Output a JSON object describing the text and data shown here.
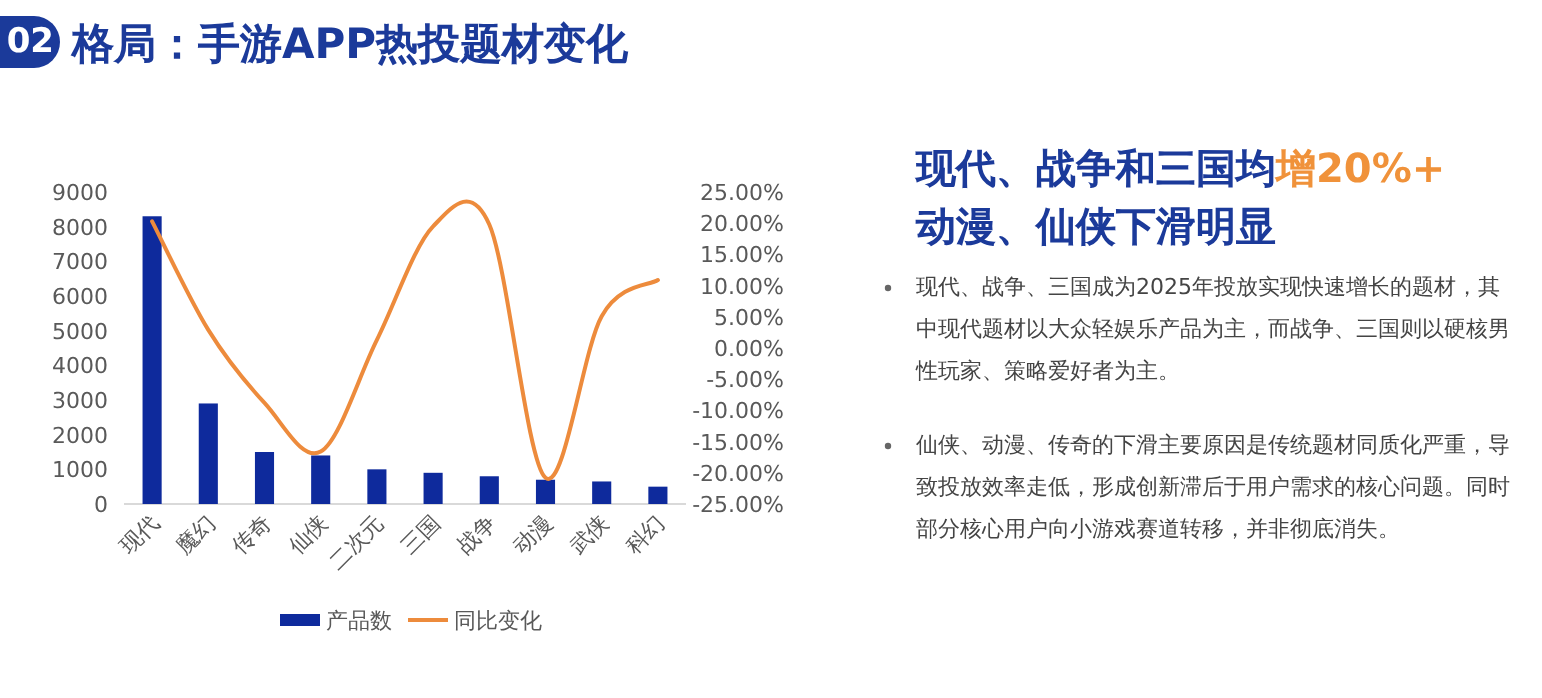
{
  "chart_data": {
    "type": "bar",
    "title": "格局：手游APP热投题材变化",
    "categories": [
      "现代",
      "魔幻",
      "传奇",
      "仙侠",
      "二次元",
      "三国",
      "战争",
      "动漫",
      "武侠",
      "科幻"
    ],
    "series": [
      {
        "name": "产品数",
        "color": "#0e2a9c",
        "values": [
          8300,
          2900,
          1500,
          1400,
          1000,
          900,
          800,
          700,
          650,
          500
        ]
      },
      {
        "name": "同比变化",
        "type": "line",
        "axis": "y2",
        "color": "#ed8b3c",
        "values": [
          20.3,
          2.9,
          -8.8,
          -16.6,
          1.3,
          19.5,
          19.8,
          -20.8,
          5.1,
          10.9
        ]
      }
    ],
    "ylim": [
      0,
      9000
    ],
    "yticks": [
      0,
      1000,
      2000,
      3000,
      4000,
      5000,
      6000,
      7000,
      8000,
      9000
    ],
    "y2lim": [
      -25,
      25
    ],
    "y2ticks": [
      {
        "value": -25,
        "label": "-25.00%"
      },
      {
        "value": -20,
        "label": "-20.00%"
      },
      {
        "value": -15,
        "label": "-15.00%"
      },
      {
        "value": -10,
        "label": "-10.00%"
      },
      {
        "value": -5,
        "label": "-5.00%"
      },
      {
        "value": 0,
        "label": "0.00%"
      },
      {
        "value": 5,
        "label": "5.00%"
      },
      {
        "value": 10,
        "label": "10.00%"
      },
      {
        "value": 15,
        "label": "15.00%"
      },
      {
        "value": 20,
        "label": "20.00%"
      },
      {
        "value": 25,
        "label": "25.00%"
      }
    ],
    "legend": "bottom",
    "grid": false,
    "annotations": [
      "02",
      "现代、战争和三国均",
      "增20%+",
      "动漫、仙侠下滑明显",
      "现代、战争、三国成为2025年投放实现快速增长的题材，其中现代题材以大众轻娱乐产品为主，而战争、三国则以硬核男性玩家、策略爱好者为主。",
      "仙侠、动漫、传奇的下滑主要原因是传统题材同质化严重，导致投放效率走低，形成创新滞后于用户需求的核心问题。同时部分核心用户向小游戏赛道转移，并非彻底消失。"
    ]
  }
}
